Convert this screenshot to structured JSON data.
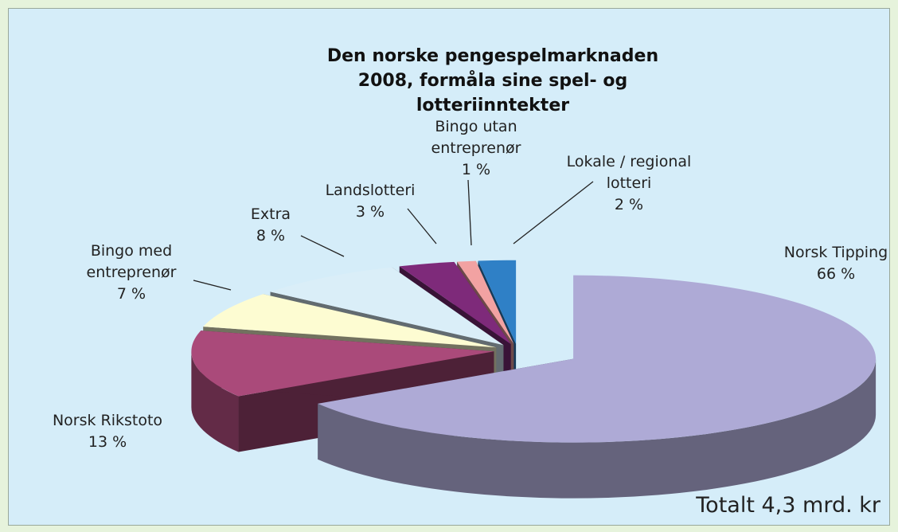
{
  "chart_data": {
    "type": "pie",
    "title": "Den norske pengespelmarknaden 2008, formåla sine spel- og lotteriinntekter",
    "categories": [
      "Norsk Tipping",
      "Norsk Rikstoto",
      "Bingo med entreprenør",
      "Extra",
      "Landslotteri",
      "Bingo utan entreprenør",
      "Lokale / regional lotteri"
    ],
    "values": [
      66,
      13,
      7,
      8,
      3,
      1,
      2
    ],
    "value_labels": [
      "66 %",
      "13 %",
      "7 %",
      "8 %",
      "3 %",
      "1 %",
      "2 %"
    ],
    "colors": [
      "#aeaad6",
      "#aa4a7a",
      "#fdfcd2",
      "#daeef8",
      "#7e2a7a",
      "#f2a2a2",
      "#2f80c6"
    ],
    "annotation": "Totalt 4,3 mrd. kr"
  }
}
